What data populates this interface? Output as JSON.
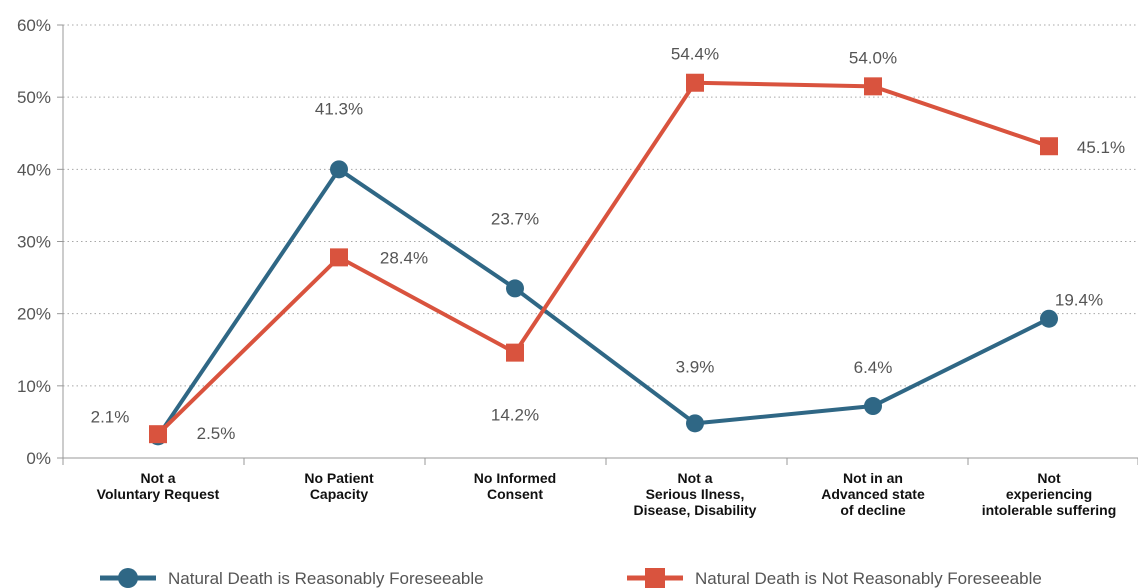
{
  "chart_data": {
    "type": "line",
    "title": "",
    "xlabel": "",
    "ylabel": "",
    "ylim": [
      0,
      60
    ],
    "y_ticks": [
      "0%",
      "10%",
      "20%",
      "30%",
      "40%",
      "50%",
      "60%"
    ],
    "grid": "horizontal dotted",
    "legend_position": "bottom",
    "categories": [
      [
        "Not a",
        "Voluntary Request"
      ],
      [
        "No Patient",
        "Capacity"
      ],
      [
        "No Informed",
        "Consent"
      ],
      [
        "Not a",
        "Serious Ilness,",
        "Disease, Disability"
      ],
      [
        "Not in an",
        "Advanced state",
        "of decline"
      ],
      [
        "Not",
        "experiencing",
        "intolerable suffering"
      ]
    ],
    "series": [
      {
        "name": "Natural Death is Reasonably Foreseeable",
        "color": "#2f6785",
        "marker": "circle",
        "values": [
          2.1,
          41.3,
          23.7,
          3.9,
          6.4,
          19.4
        ],
        "plot_values": [
          3.0,
          40.0,
          23.5,
          4.8,
          7.2,
          19.3
        ],
        "labels": [
          "2.1%",
          "41.3%",
          "23.7%",
          "3.9%",
          "6.4%",
          "19.4%"
        ]
      },
      {
        "name": "Natural Death is Not Reasonably Foreseeable",
        "color": "#d9533e",
        "marker": "square",
        "values": [
          2.5,
          28.4,
          14.2,
          54.4,
          54.0,
          45.1
        ],
        "plot_values": [
          3.3,
          27.8,
          14.6,
          52.0,
          51.5,
          43.2
        ],
        "labels": [
          "2.5%",
          "28.4%",
          "14.2%",
          "54.4%",
          "54.0%",
          "45.1%"
        ]
      }
    ]
  }
}
